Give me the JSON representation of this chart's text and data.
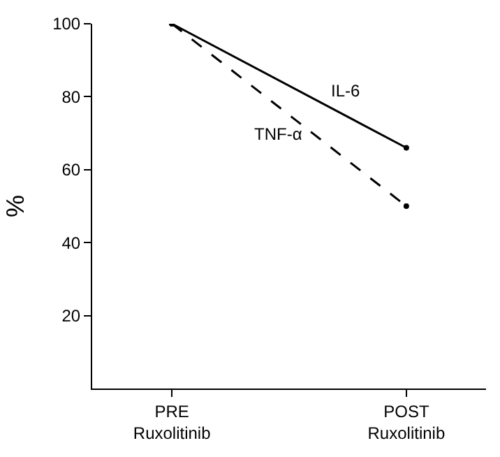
{
  "chart_data": {
    "type": "line",
    "ylabel": "%",
    "categories": [
      "PRE\nRuxolitinib",
      "POST\nRuxolitinib"
    ],
    "series": [
      {
        "name": "IL-6",
        "color": "#000000",
        "values": [
          100,
          66
        ],
        "line_style": "solid"
      },
      {
        "name": "TNF-α",
        "color": "#000000",
        "values": [
          100,
          50
        ],
        "line_style": "dashed"
      }
    ],
    "ylim": [
      0,
      100
    ],
    "yticks": [
      20,
      40,
      60,
      80,
      100
    ],
    "marker": "circle",
    "legend": false
  }
}
